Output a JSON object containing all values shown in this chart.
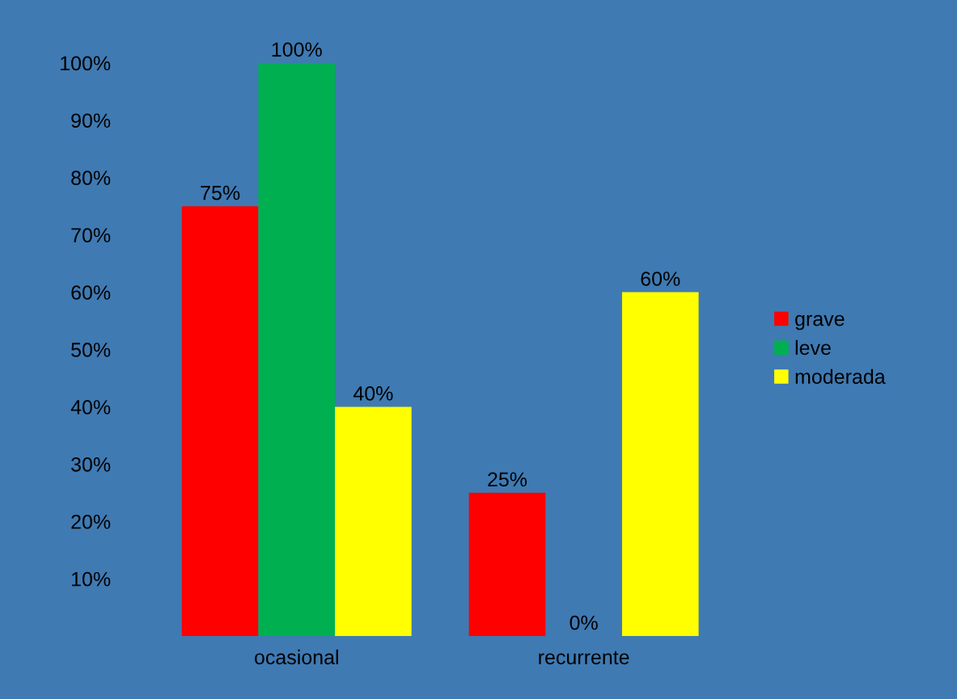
{
  "chart_data": {
    "type": "bar",
    "categories": [
      "ocasional",
      "recurrente"
    ],
    "series": [
      {
        "name": "grave",
        "color": "#ff0000",
        "values": [
          75,
          25
        ],
        "value_labels": [
          "75%",
          "25%"
        ]
      },
      {
        "name": "leve",
        "color": "#00b050",
        "values": [
          100,
          0
        ],
        "value_labels": [
          "100%",
          "0%"
        ]
      },
      {
        "name": "moderada",
        "color": "#ffff00",
        "values": [
          40,
          60
        ],
        "value_labels": [
          "40%",
          "60%"
        ]
      }
    ],
    "ylim": [
      0,
      100
    ],
    "yticks": [
      {
        "value": 10,
        "label": "10%"
      },
      {
        "value": 20,
        "label": "20%"
      },
      {
        "value": 30,
        "label": "30%"
      },
      {
        "value": 40,
        "label": "40%"
      },
      {
        "value": 50,
        "label": "50%"
      },
      {
        "value": 60,
        "label": "60%"
      },
      {
        "value": 70,
        "label": "70%"
      },
      {
        "value": 80,
        "label": "80%"
      },
      {
        "value": 90,
        "label": "90%"
      },
      {
        "value": 100,
        "label": "100%"
      }
    ],
    "grid": false,
    "legend": "right"
  }
}
